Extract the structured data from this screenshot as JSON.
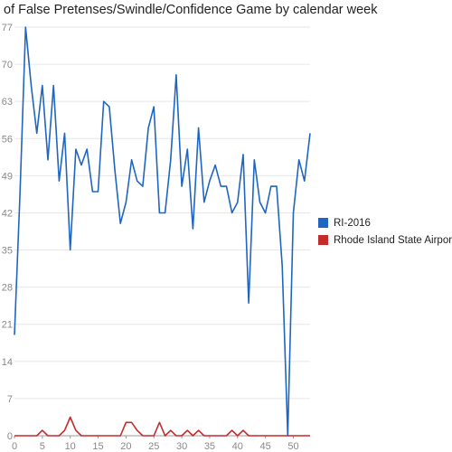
{
  "chart_data": {
    "type": "line",
    "title": "of False Pretenses/Swindle/Confidence Game by calendar week",
    "xlabel": "",
    "ylabel": "",
    "xlim": [
      0,
      53
    ],
    "ylim": [
      0,
      77
    ],
    "x_ticks": [
      0,
      5,
      10,
      15,
      20,
      25,
      30,
      35,
      40,
      45,
      50
    ],
    "y_ticks": [
      0,
      7,
      14,
      21,
      28,
      35,
      42,
      49,
      56,
      63,
      70,
      77
    ],
    "legend_position": "right",
    "grid": "horizontal",
    "series": [
      {
        "name": "RI-2016",
        "color": "#1f66c1",
        "x": [
          0,
          1,
          2,
          3,
          4,
          5,
          6,
          7,
          8,
          9,
          10,
          11,
          12,
          13,
          14,
          15,
          16,
          17,
          18,
          19,
          20,
          21,
          22,
          23,
          24,
          25,
          26,
          27,
          28,
          29,
          30,
          31,
          32,
          33,
          34,
          35,
          36,
          37,
          38,
          39,
          40,
          41,
          42,
          43,
          44,
          45,
          46,
          47,
          48,
          49,
          50,
          51,
          52,
          53
        ],
        "values": [
          19,
          46,
          77,
          66,
          57,
          66,
          52,
          66,
          48,
          57,
          35,
          54,
          51,
          54,
          46,
          46,
          63,
          62,
          50,
          40,
          44,
          52,
          48,
          47,
          58,
          62,
          42,
          42,
          52,
          68,
          47,
          54,
          39,
          58,
          44,
          48,
          51,
          47,
          47,
          42,
          44,
          53,
          25,
          52,
          44,
          42,
          47,
          47,
          32,
          0,
          42,
          52,
          48,
          57
        ]
      },
      {
        "name": "Rhode Island State Airport",
        "color": "#c42b2b",
        "x": [
          0,
          1,
          2,
          3,
          4,
          5,
          6,
          7,
          8,
          9,
          10,
          11,
          12,
          13,
          14,
          15,
          16,
          17,
          18,
          19,
          20,
          21,
          22,
          23,
          24,
          25,
          26,
          27,
          28,
          29,
          30,
          31,
          32,
          33,
          34,
          35,
          36,
          37,
          38,
          39,
          40,
          41,
          42,
          43,
          44,
          45,
          46,
          47,
          48,
          49,
          50,
          51,
          52,
          53
        ],
        "values": [
          0,
          0,
          0,
          0,
          0,
          1,
          0,
          0,
          0,
          1,
          3.5,
          1,
          0,
          0,
          0,
          0,
          0,
          0,
          0,
          0,
          2.5,
          2.5,
          1,
          0,
          0,
          0,
          2.5,
          0,
          1,
          0,
          0,
          1,
          0,
          1,
          0,
          0,
          0,
          0,
          0,
          1,
          0,
          1,
          0,
          0,
          0,
          0,
          0,
          0,
          0,
          0,
          0,
          0,
          0,
          0
        ]
      }
    ]
  }
}
